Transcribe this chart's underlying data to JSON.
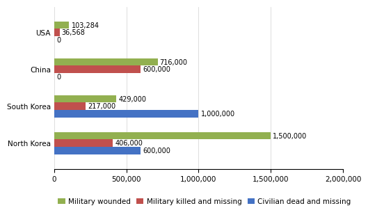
{
  "categories": [
    "North Korea",
    "South Korea",
    "China",
    "USA"
  ],
  "military_wounded": [
    1500000,
    429000,
    716000,
    103284
  ],
  "military_killed": [
    406000,
    217000,
    600000,
    36568
  ],
  "civilian_dead": [
    600000,
    1000000,
    0,
    0
  ],
  "colors": {
    "military_wounded": "#92b050",
    "military_killed": "#c0504d",
    "civilian_dead": "#4472c4"
  },
  "xlim": [
    0,
    2000000
  ],
  "xticks": [
    0,
    500000,
    1000000,
    1500000,
    2000000
  ],
  "legend_labels": [
    "Military wounded",
    "Military killed and missing",
    "Civilian dead and missing"
  ],
  "background_color": "#ffffff",
  "bar_height": 0.2,
  "label_fontsize": 7,
  "tick_fontsize": 7.5,
  "legend_fontsize": 7.5
}
